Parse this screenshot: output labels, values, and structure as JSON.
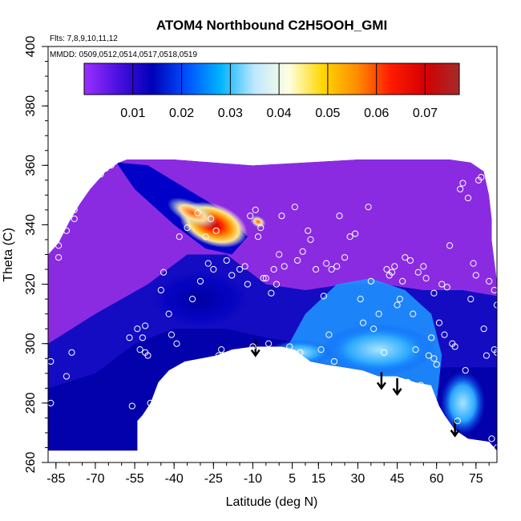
{
  "chart_data": {
    "type": "heatmap",
    "title": "ATOM4 Northbound C2H5OOH_GMI",
    "notes": [
      "Flts: 7,8,9,10,11,12",
      "MMDD: 0509,0512,0514,0517,0518,0519"
    ],
    "xlabel": "Latitude (deg N)",
    "ylabel": "Theta (C)",
    "xlim": [
      -88,
      83
    ],
    "ylim": [
      260,
      400
    ],
    "x_ticks": [
      -85,
      -70,
      -55,
      -40,
      -25,
      -10,
      5,
      15,
      30,
      45,
      60,
      75
    ],
    "y_ticks": [
      260,
      280,
      300,
      320,
      340,
      360,
      380,
      400
    ],
    "colorbar": {
      "min": 0.0,
      "max": 0.077,
      "ticks": [
        0.01,
        0.02,
        0.03,
        0.04,
        0.05,
        0.06,
        0.07
      ],
      "tick_labels": [
        "0.01",
        "0.02",
        "0.03",
        "0.04",
        "0.05",
        "0.06",
        "0.07"
      ],
      "colors": [
        "#9b30ff",
        "#4b10e0",
        "#0000b8",
        "#0050ff",
        "#00b4ff",
        "#bfe8ff",
        "#ffffe0",
        "#ffd700",
        "#ff8c00",
        "#ff1a00",
        "#d40000",
        "#a52a2a"
      ]
    },
    "field_hotspots": [
      {
        "lat": -25,
        "theta": 340,
        "value": 0.075
      },
      {
        "lat": -33,
        "theta": 344,
        "value": 0.05
      },
      {
        "lat": -8,
        "theta": 341,
        "value": 0.06
      },
      {
        "lat": 40,
        "theta": 293,
        "value": 0.028
      },
      {
        "lat": 55,
        "theta": 292,
        "value": 0.024
      }
    ],
    "tropopause_arrows": [
      {
        "lat": -9,
        "theta": 302
      },
      {
        "lat": 39,
        "theta": 291
      },
      {
        "lat": 45,
        "theta": 289
      },
      {
        "lat": 67,
        "theta": 275
      }
    ],
    "observations": [
      [
        -87,
        294
      ],
      [
        -87,
        280
      ],
      [
        -81,
        289
      ],
      [
        -79,
        297
      ],
      [
        -84,
        333
      ],
      [
        -84,
        329
      ],
      [
        -81,
        338
      ],
      [
        -78,
        342
      ],
      [
        -78,
        345
      ],
      [
        -68,
        357
      ],
      [
        -66,
        359
      ],
      [
        -64,
        360
      ],
      [
        -57,
        302
      ],
      [
        -56,
        279
      ],
      [
        -54,
        305
      ],
      [
        -53,
        298
      ],
      [
        -52,
        302
      ],
      [
        -51,
        306
      ],
      [
        -51,
        297
      ],
      [
        -50,
        296
      ],
      [
        -49,
        280
      ],
      [
        -48,
        276
      ],
      [
        -45,
        318
      ],
      [
        -44,
        324
      ],
      [
        -42,
        310
      ],
      [
        -41,
        303
      ],
      [
        -40,
        289
      ],
      [
        -39,
        300
      ],
      [
        -38,
        336
      ],
      [
        -36,
        292
      ],
      [
        -35,
        339
      ],
      [
        -34,
        291
      ],
      [
        -33,
        315
      ],
      [
        -31,
        344
      ],
      [
        -30,
        321
      ],
      [
        -28,
        336
      ],
      [
        -27,
        327
      ],
      [
        -26,
        342
      ],
      [
        -25,
        325
      ],
      [
        -24,
        338
      ],
      [
        -23,
        296
      ],
      [
        -22,
        298
      ],
      [
        -21,
        296
      ],
      [
        -20,
        328
      ],
      [
        -18,
        323
      ],
      [
        -17,
        297
      ],
      [
        -15,
        325
      ],
      [
        -13,
        326
      ],
      [
        -12,
        320
      ],
      [
        -11,
        343
      ],
      [
        -10,
        299
      ],
      [
        -9,
        345
      ],
      [
        -8,
        336
      ],
      [
        -7,
        339
      ],
      [
        -6,
        322
      ],
      [
        -5,
        322
      ],
      [
        -4,
        300
      ],
      [
        -3,
        317
      ],
      [
        -2,
        325
      ],
      [
        -1,
        320
      ],
      [
        0,
        330
      ],
      [
        1,
        343
      ],
      [
        2,
        326
      ],
      [
        3,
        294
      ],
      [
        4,
        299
      ],
      [
        6,
        346
      ],
      [
        7,
        328
      ],
      [
        8,
        297
      ],
      [
        9,
        331
      ],
      [
        11,
        338
      ],
      [
        12,
        335
      ],
      [
        14,
        325
      ],
      [
        16,
        298
      ],
      [
        17,
        316
      ],
      [
        18,
        327
      ],
      [
        19,
        303
      ],
      [
        20,
        325
      ],
      [
        21,
        294
      ],
      [
        22,
        326
      ],
      [
        23,
        343
      ],
      [
        25,
        329
      ],
      [
        27,
        336
      ],
      [
        29,
        337
      ],
      [
        31,
        315
      ],
      [
        32,
        307
      ],
      [
        34,
        346
      ],
      [
        35,
        321
      ],
      [
        36,
        305
      ],
      [
        38,
        310
      ],
      [
        40,
        297
      ],
      [
        41,
        325
      ],
      [
        42,
        323
      ],
      [
        43,
        324
      ],
      [
        44,
        326
      ],
      [
        45,
        313
      ],
      [
        46,
        315
      ],
      [
        47,
        321
      ],
      [
        48,
        329
      ],
      [
        49,
        287
      ],
      [
        50,
        328
      ],
      [
        51,
        310
      ],
      [
        52,
        298
      ],
      [
        53,
        324
      ],
      [
        54,
        286
      ],
      [
        55,
        326
      ],
      [
        56,
        322
      ],
      [
        57,
        296
      ],
      [
        58,
        302
      ],
      [
        59,
        317
      ],
      [
        59,
        295
      ],
      [
        60,
        293
      ],
      [
        61,
        307
      ],
      [
        62,
        320
      ],
      [
        63,
        303
      ],
      [
        64,
        319
      ],
      [
        65,
        333
      ],
      [
        66,
        300
      ],
      [
        67,
        299
      ],
      [
        68,
        274
      ],
      [
        69,
        352
      ],
      [
        70,
        354
      ],
      [
        71,
        291
      ],
      [
        72,
        349
      ],
      [
        73,
        315
      ],
      [
        74,
        327
      ],
      [
        75,
        323
      ],
      [
        76,
        355
      ],
      [
        77,
        356
      ],
      [
        78,
        305
      ],
      [
        79,
        296
      ],
      [
        80,
        321
      ],
      [
        81,
        268
      ],
      [
        82,
        318
      ],
      [
        82,
        298
      ],
      [
        83,
        265
      ],
      [
        83,
        297
      ],
      [
        83,
        313
      ]
    ]
  }
}
